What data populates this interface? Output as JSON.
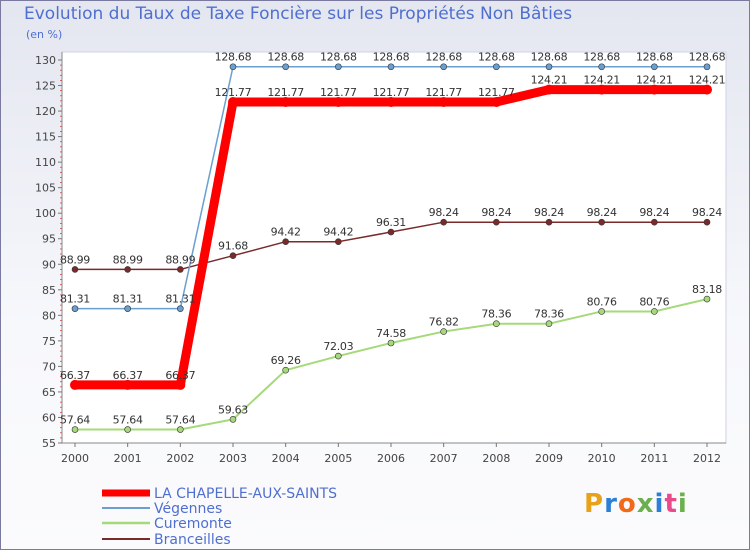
{
  "title": "Evolution du Taux de Taxe Foncière sur les Propriétés Non Bâties",
  "unit_label": "(en %)",
  "logo": {
    "text": "Proxiti",
    "colors": [
      "#e8a21a",
      "#2b7fd6",
      "#f06a1a",
      "#6ab04c",
      "#2b7fd6",
      "#e84a8a",
      "#6ab04c"
    ]
  },
  "chart_data": {
    "type": "line",
    "title": "Evolution du Taux de Taxe Foncière sur les Propriétés Non Bâties",
    "ylabel": "(en %)",
    "xlabel": "",
    "ylim": [
      55,
      130
    ],
    "yticks": [
      55,
      60,
      65,
      70,
      75,
      80,
      85,
      90,
      95,
      100,
      105,
      110,
      115,
      120,
      125,
      130
    ],
    "x": [
      "2000",
      "2001",
      "2002",
      "2003",
      "2004",
      "2005",
      "2006",
      "2007",
      "2008",
      "2009",
      "2010",
      "2011",
      "2012"
    ],
    "series": [
      {
        "name": "LA CHAPELLE-AUX-SAINTS",
        "color": "#ff0000",
        "width": 9,
        "values": [
          66.37,
          66.37,
          66.37,
          121.77,
          121.77,
          121.77,
          121.77,
          121.77,
          121.77,
          124.21,
          124.21,
          124.21,
          124.21
        ],
        "labels": [
          "66.37",
          "66.37",
          "66.37",
          "121.77",
          "121.77",
          "121.77",
          "121.77",
          "121.77",
          "121.77",
          "124.21",
          "124.21",
          "124.21",
          "124.21"
        ]
      },
      {
        "name": "Végennes",
        "color": "#6a9fd0",
        "width": 1.5,
        "values": [
          81.31,
          81.31,
          81.31,
          128.68,
          128.68,
          128.68,
          128.68,
          128.68,
          128.68,
          128.68,
          128.68,
          128.68,
          128.68
        ],
        "labels": [
          "81.31",
          "81.31",
          "81.31",
          "128.68",
          "128.68",
          "128.68",
          "128.68",
          "128.68",
          "128.68",
          "128.68",
          "128.68",
          "128.68",
          "128.68"
        ]
      },
      {
        "name": "Curemonte",
        "color": "#a6d97a",
        "width": 2,
        "values": [
          57.64,
          57.64,
          57.64,
          59.63,
          69.26,
          72.03,
          74.58,
          76.82,
          78.36,
          78.36,
          80.76,
          80.76,
          83.18
        ],
        "labels": [
          "57.64",
          "57.64",
          "57.64",
          "59.63",
          "69.26",
          "72.03",
          "74.58",
          "76.82",
          "78.36",
          "78.36",
          "80.76",
          "80.76",
          "83.18"
        ]
      },
      {
        "name": "Branceilles",
        "color": "#7a2a2a",
        "width": 1.5,
        "values": [
          88.99,
          88.99,
          88.99,
          91.68,
          94.42,
          94.42,
          96.31,
          98.24,
          98.24,
          98.24,
          98.24,
          98.24,
          98.24
        ],
        "labels": [
          "88.99",
          "88.99",
          "88.99",
          "91.68",
          "94.42",
          "94.42",
          "96.31",
          "98.24",
          "98.24",
          "98.24",
          "98.24",
          "98.24",
          "98.24"
        ]
      }
    ],
    "legend_position": "bottom-left",
    "grid": false
  }
}
